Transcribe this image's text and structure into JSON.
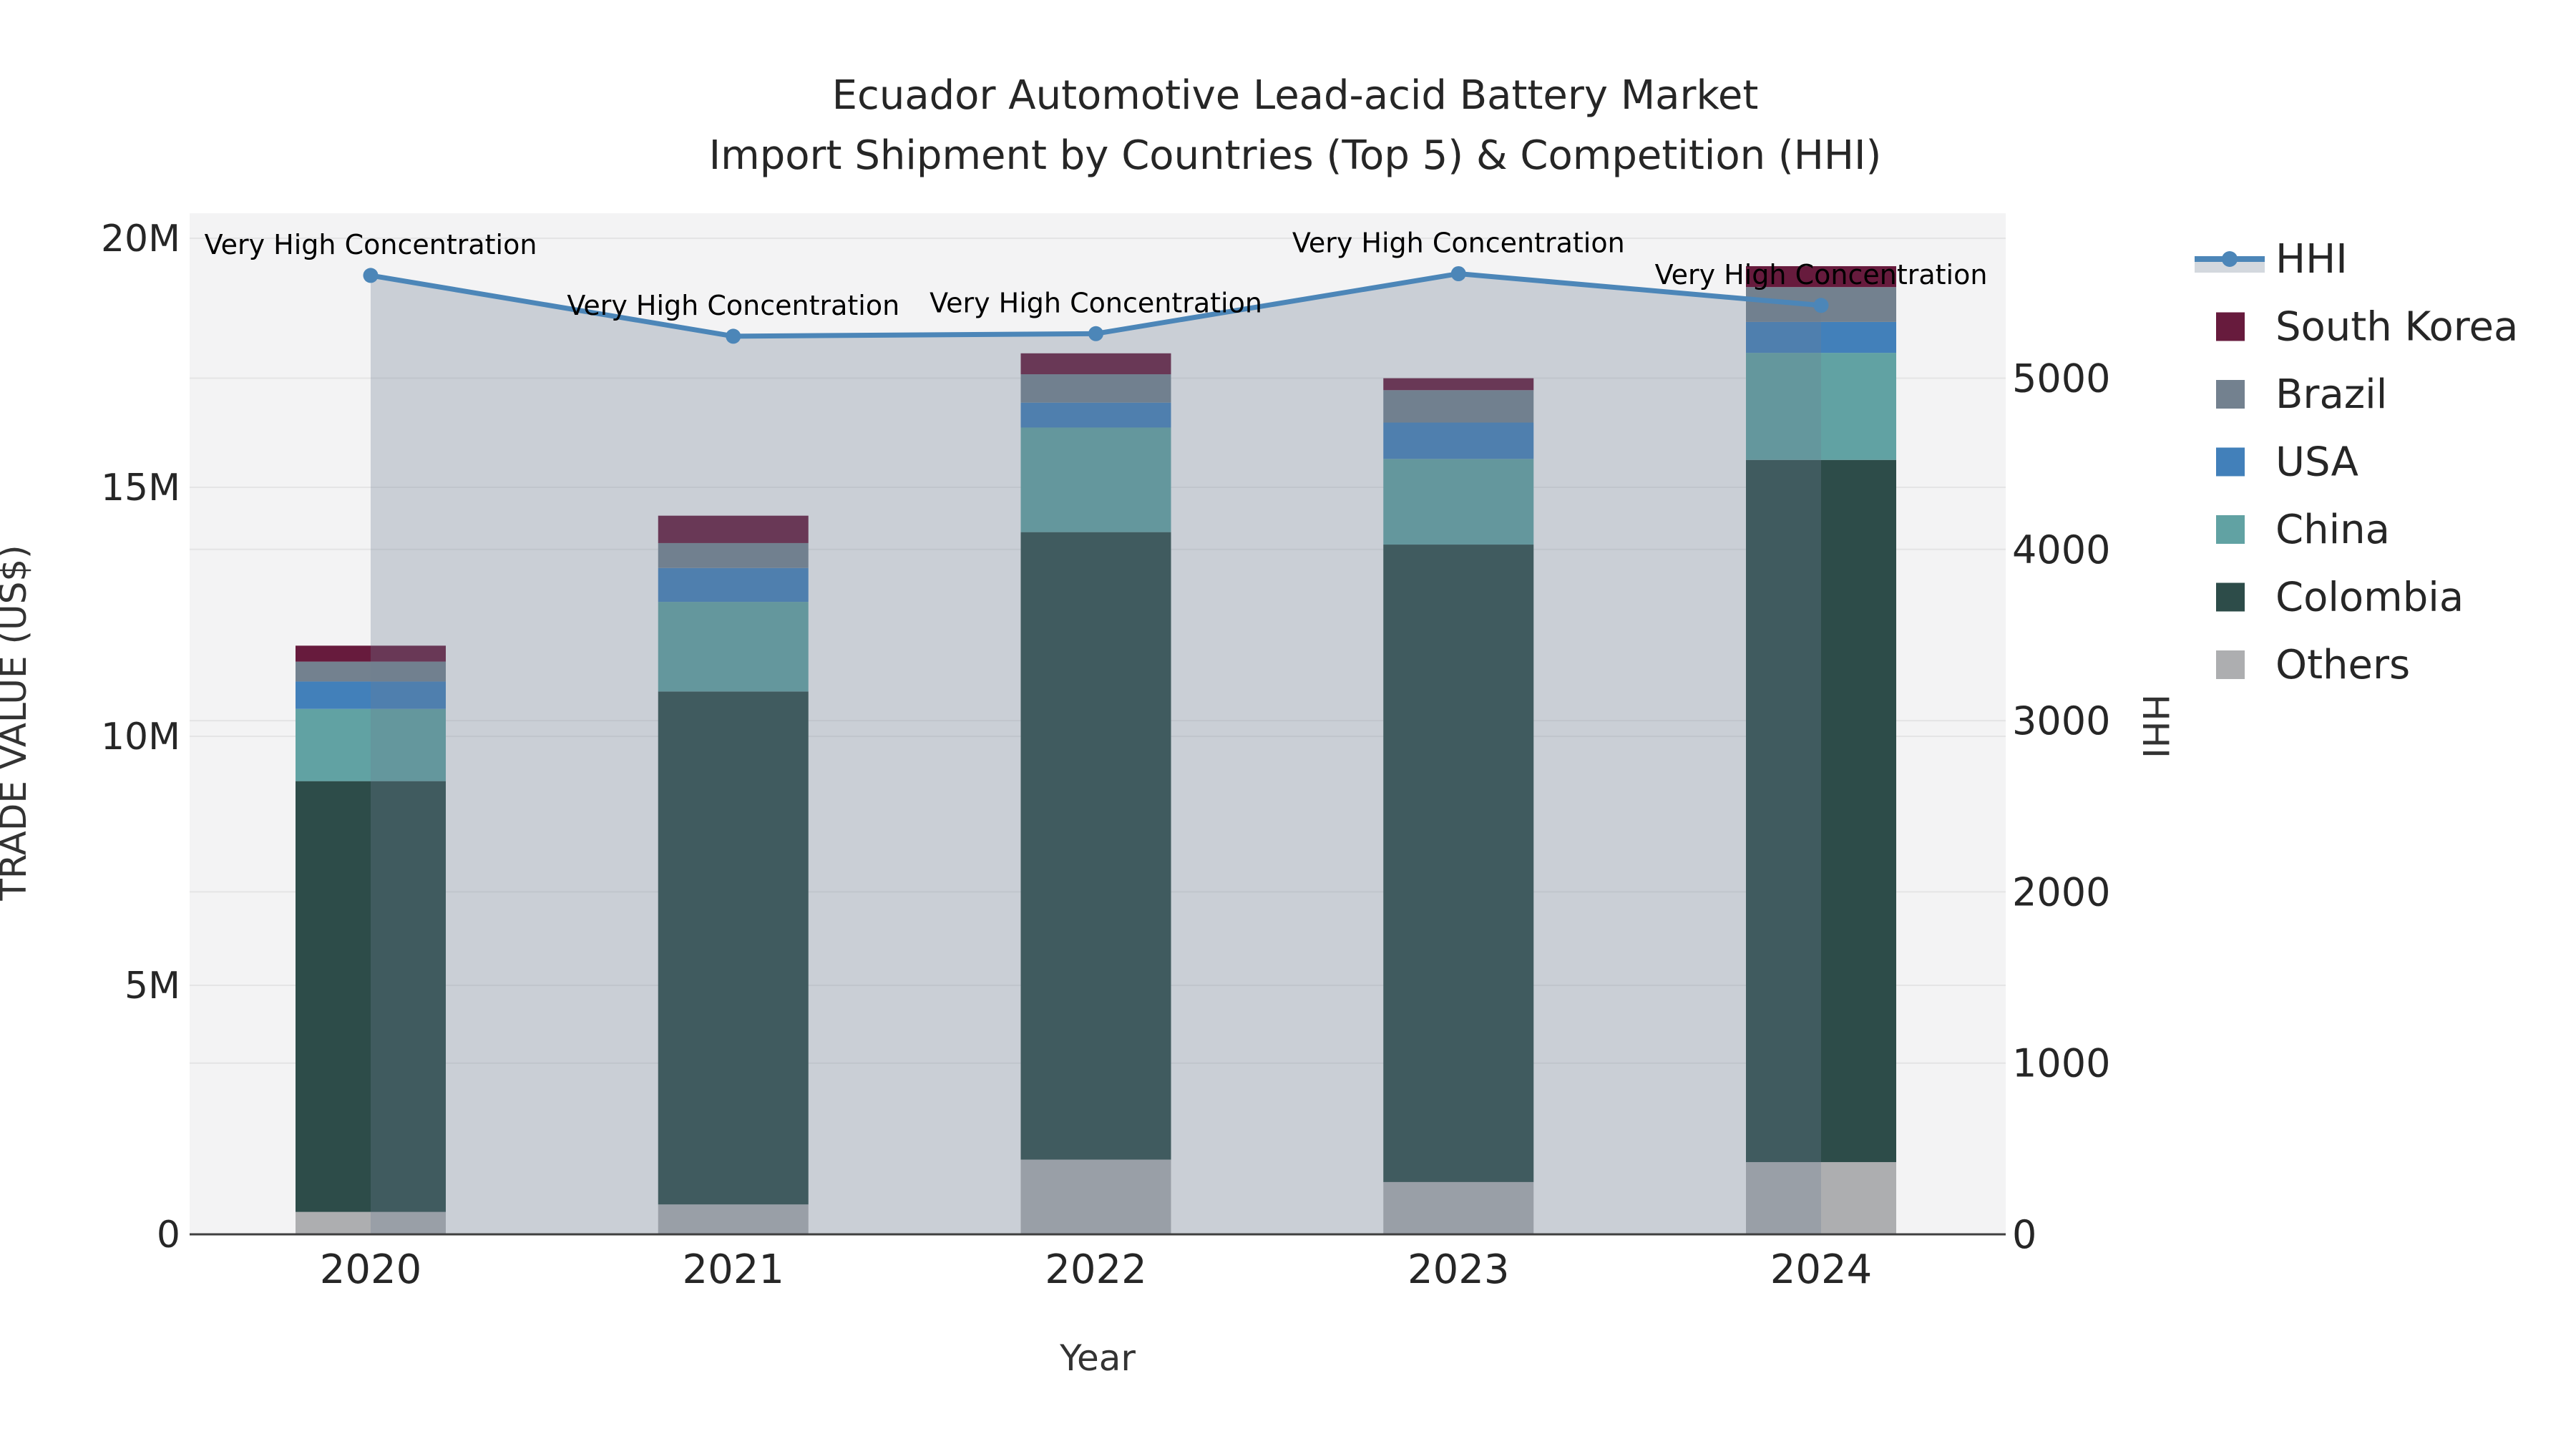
{
  "title": {
    "line1": "Ecuador Automotive Lead-acid Battery Market",
    "line2": "Import Shipment by Countries (Top 5) & Competition (HHI)"
  },
  "axes": {
    "x": {
      "title": "Year",
      "ticks": [
        "2020",
        "2021",
        "2022",
        "2023",
        "2024"
      ]
    },
    "y_left": {
      "title": "TRADE VALUE (US$)",
      "ticks": [
        "0",
        "5M",
        "10M",
        "15M",
        "20M"
      ],
      "tick_values": [
        0,
        5,
        10,
        15,
        20
      ],
      "range_millions": [
        0,
        20.5
      ]
    },
    "y_right": {
      "title": "HHI",
      "ticks": [
        "0",
        "1000",
        "2000",
        "3000",
        "4000",
        "5000"
      ],
      "tick_values": [
        0,
        1000,
        2000,
        3000,
        4000,
        5000
      ],
      "range": [
        0,
        5960
      ]
    }
  },
  "chart_data": {
    "type": "bar+line",
    "bar_mode": "stacked",
    "categories": [
      "2020",
      "2021",
      "2022",
      "2023",
      "2024"
    ],
    "bar_value_unit": "million US$",
    "series": [
      {
        "name": "Others",
        "color": "#adaeb0",
        "values": [
          0.45,
          0.6,
          1.5,
          1.05,
          1.45
        ]
      },
      {
        "name": "Colombia",
        "color": "#2d4c49",
        "values": [
          8.65,
          10.3,
          12.6,
          12.8,
          14.1
        ]
      },
      {
        "name": "China",
        "color": "#61a2a3",
        "values": [
          1.45,
          1.8,
          2.1,
          1.72,
          2.15
        ]
      },
      {
        "name": "USA",
        "color": "#4280ba",
        "values": [
          0.55,
          0.68,
          0.5,
          0.73,
          0.62
        ]
      },
      {
        "name": "Brazil",
        "color": "#73818f",
        "values": [
          0.4,
          0.5,
          0.57,
          0.65,
          0.7
        ]
      },
      {
        "name": "South Korea",
        "color": "#671b3d",
        "values": [
          0.32,
          0.55,
          0.42,
          0.24,
          0.42
        ]
      }
    ],
    "line": {
      "name": "HHI",
      "color": "#4c86b8",
      "fill_color": "rgba(110,127,145,0.30)",
      "values": [
        5600,
        5245,
        5260,
        5610,
        5425
      ]
    },
    "annotations": [
      "Very High Concentration",
      "Very High Concentration",
      "Very High Concentration",
      "Very High Concentration",
      "Very High Concentration"
    ],
    "grid": true,
    "legend_position": "right"
  },
  "legend": {
    "items": [
      {
        "label": "HHI",
        "type": "line",
        "color": "#4c86b8"
      },
      {
        "label": "South Korea",
        "type": "swatch",
        "color": "#671b3d"
      },
      {
        "label": "Brazil",
        "type": "swatch",
        "color": "#73818f"
      },
      {
        "label": "USA",
        "type": "swatch",
        "color": "#4280ba"
      },
      {
        "label": "China",
        "type": "swatch",
        "color": "#61a2a3"
      },
      {
        "label": "Colombia",
        "type": "swatch",
        "color": "#2d4c49"
      },
      {
        "label": "Others",
        "type": "swatch",
        "color": "#adaeb0"
      }
    ]
  },
  "colors": {
    "plot_background": "#f3f3f4",
    "page_background": "#ffffff",
    "gridline": "#e4e4e5",
    "axis_line": "#3f3f3f",
    "text": "#262626"
  }
}
